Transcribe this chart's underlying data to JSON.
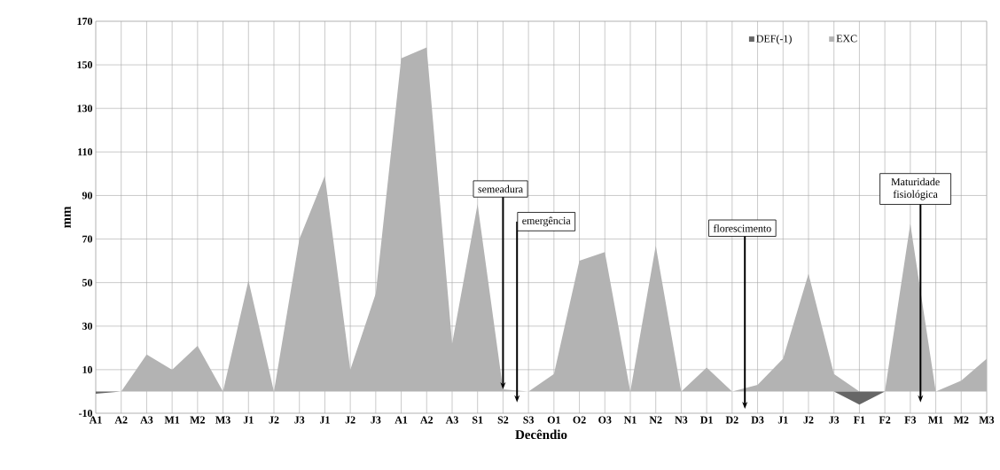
{
  "chart_data": {
    "type": "area",
    "xlabel": "Decêndio",
    "ylabel": "mm",
    "categories": [
      "A1",
      "A2",
      "A3",
      "M1",
      "M2",
      "M3",
      "J1",
      "J2",
      "J3",
      "J1",
      "J2",
      "J3",
      "A1",
      "A2",
      "A3",
      "S1",
      "S2",
      "S3",
      "O1",
      "O2",
      "O3",
      "N1",
      "N2",
      "N3",
      "D1",
      "D2",
      "D3",
      "J1",
      "J2",
      "J3",
      "F1",
      "F2",
      "F3",
      "M1",
      "M2",
      "M3"
    ],
    "series": [
      {
        "name": "DEF(-1)",
        "color": "#666666",
        "values": [
          -1,
          0,
          0,
          0,
          0,
          0,
          0,
          0,
          0,
          0,
          0,
          0,
          0,
          0,
          0,
          0,
          0,
          0,
          0,
          0,
          0,
          0,
          0,
          0,
          0,
          0,
          0,
          0,
          0,
          0,
          -6,
          0,
          0,
          0,
          0,
          0
        ]
      },
      {
        "name": "EXC",
        "color": "#b3b3b3",
        "values": [
          0,
          0,
          17,
          10,
          21,
          0,
          51,
          0,
          70,
          99,
          10,
          45,
          153,
          158,
          22,
          86,
          1,
          0,
          8,
          60,
          64,
          0,
          67,
          0,
          11,
          0,
          3,
          15,
          54,
          8,
          0,
          0,
          77,
          0,
          5,
          15
        ]
      }
    ],
    "ylim": [
      -10,
      170
    ],
    "yticks": [
      -10,
      10,
      30,
      50,
      70,
      90,
      110,
      130,
      150,
      170
    ],
    "grid": true,
    "legend": "top right",
    "annotations": [
      {
        "text": "semeadura",
        "x": "S2",
        "y": 1
      },
      "emergência",
      "florescimento",
      "Maturidade fisiológica"
    ]
  }
}
